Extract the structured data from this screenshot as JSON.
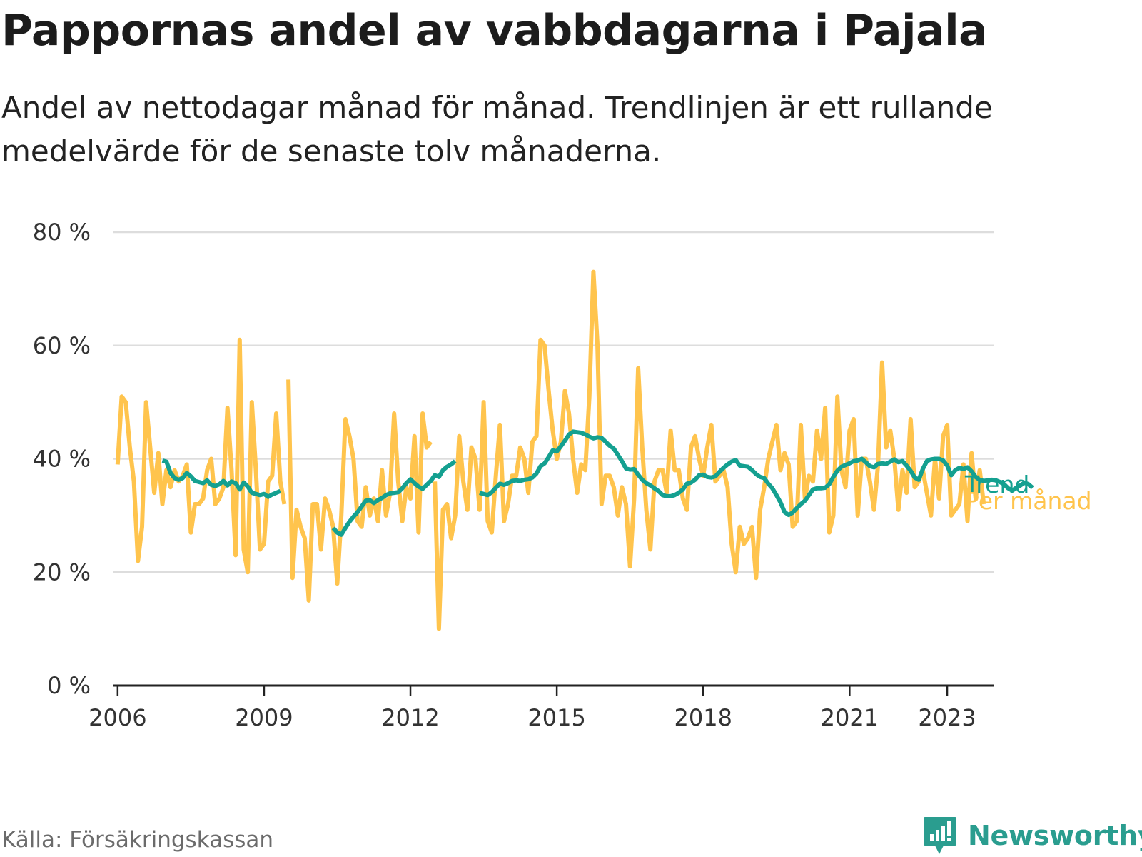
{
  "header": {
    "title": "Pappornas andel av vabbdagarna i Pajala",
    "subtitle": "Andel av nettodagar månad för månad. Trendlinjen är ett rullande medelvärde för de senaste tolv månaderna."
  },
  "footer": {
    "source": "Källa: Försäkringskassan",
    "brand": "Newsworthy"
  },
  "colors": {
    "monthly": "#ffc44d",
    "trend": "#14a090",
    "grid": "#dddddd",
    "axis": "#222222",
    "brand": "#2a9d8f"
  },
  "chart_data": {
    "type": "line",
    "xlim": [
      2005.9,
      2023.95
    ],
    "ylim": [
      0,
      80
    ],
    "yticks": [
      0,
      20,
      40,
      60,
      80
    ],
    "ytick_labels": [
      "0 %",
      "20 %",
      "40 %",
      "60 %",
      "80 %"
    ],
    "xticks": [
      2006,
      2009,
      2012,
      2015,
      2018,
      2021,
      2023
    ],
    "xtick_labels": [
      "2006",
      "2009",
      "2012",
      "2015",
      "2018",
      "2021",
      "2023"
    ],
    "grid": true,
    "series": [
      {
        "name": "Per månad",
        "key": "monthly",
        "segments": [
          {
            "start": 2006.0,
            "values": [
              39,
              51,
              50,
              42,
              36,
              22,
              28,
              50,
              42,
              34,
              41,
              32,
              38,
              35,
              38,
              36,
              37,
              39,
              27,
              32,
              32,
              33,
              38,
              40,
              32,
              33,
              35,
              49,
              38,
              23,
              61,
              24,
              20,
              50,
              38,
              24,
              25,
              36,
              37,
              48,
              36,
              32
            ]
          },
          {
            "start": 2009.5,
            "values": [
              54,
              19,
              31,
              28,
              26,
              15,
              32,
              32,
              24,
              33,
              31,
              28,
              18,
              30,
              47,
              44,
              40,
              29,
              28,
              35,
              30,
              33,
              29,
              38,
              30,
              34,
              48,
              36,
              29,
              35,
              33,
              44,
              27,
              48,
              42,
              43
            ]
          },
          {
            "start": 2012.5,
            "values": [
              36,
              10,
              31,
              32,
              26,
              30,
              44,
              36,
              31,
              42,
              40,
              31,
              50,
              29,
              27,
              37,
              46,
              29,
              32,
              37,
              37,
              42,
              40,
              34,
              43,
              44,
              61,
              60,
              52,
              45,
              40,
              43,
              52,
              48,
              40,
              34,
              39,
              38,
              51,
              73,
              60,
              32,
              37,
              37,
              35,
              30,
              35,
              32,
              21,
              33,
              56,
              42,
              31,
              24,
              36,
              38,
              38,
              34,
              45,
              38,
              38,
              33,
              31,
              42,
              44,
              40,
              37,
              42,
              46,
              36,
              37,
              38,
              35,
              25,
              20,
              28,
              25,
              26,
              28,
              19,
              31,
              35,
              40,
              43,
              46,
              38,
              41,
              39,
              28,
              29,
              46,
              33,
              37,
              36,
              45,
              40,
              49,
              27,
              30,
              51,
              38,
              35,
              45,
              47,
              30,
              40,
              40,
              36,
              31,
              39,
              57,
              42,
              45,
              40,
              31,
              38,
              34,
              47,
              35,
              36,
              38,
              34,
              30,
              40,
              33,
              44,
              46,
              30,
              31,
              32,
              39,
              29,
              41,
              33,
              38,
              32
            ]
          }
        ]
      },
      {
        "name": "Trend",
        "key": "trend",
        "segments": [
          {
            "start": 2006.9167,
            "values": [
              39.7,
              39.5,
              37.5,
              36.6,
              36.3,
              36.6,
              37.5,
              36.9,
              36.1,
              35.9,
              35.7,
              36.2,
              35.4,
              35.2,
              35.5,
              36.1,
              35.3,
              36.0,
              35.7,
              34.6,
              35.8,
              35.1,
              34.0,
              33.8,
              33.6,
              33.8,
              33.3,
              33.7,
              34.0,
              34.3
            ]
          },
          {
            "start": 2010.4167,
            "values": [
              27.8,
              27.0,
              26.6,
              27.8,
              28.9,
              29.8,
              30.6,
              31.6,
              32.6,
              32.7,
              32.2,
              32.7,
              33.1,
              33.6,
              33.9,
              34.0,
              34.1,
              34.8,
              35.7,
              36.4,
              35.7,
              35.1,
              34.7,
              35.4,
              36.1,
              37.1,
              36.8,
              38.0,
              38.6,
              39.0,
              39.6
            ]
          },
          {
            "start": 2013.4167,
            "values": [
              34.0,
              33.8,
              33.6,
              34.1,
              34.9,
              35.6,
              35.4,
              35.7,
              36.1,
              36.2,
              36.1,
              36.3,
              36.4,
              36.7,
              37.4,
              38.7,
              39.2,
              40.3,
              41.5,
              41.3,
              42.2,
              43.2,
              44.3,
              44.8,
              44.7,
              44.6,
              44.3,
              43.9,
              43.6,
              43.8,
              43.7,
              43.0,
              42.3,
              41.8,
              40.7,
              39.6,
              38.3,
              38.1,
              38.2,
              37.2,
              36.3,
              35.7,
              35.3,
              34.8,
              34.3,
              33.6,
              33.4,
              33.4,
              33.6,
              34.0,
              34.6,
              35.6,
              35.8,
              36.3,
              37.1,
              37.2,
              36.8,
              36.7,
              36.9,
              37.7,
              38.4,
              39.0,
              39.5,
              39.8,
              38.8,
              38.7,
              38.6,
              38.0,
              37.3,
              36.8,
              36.6,
              35.6,
              34.8,
              33.6,
              32.3,
              30.6,
              30.1,
              30.5,
              31.3,
              32.0,
              32.6,
              33.6,
              34.6,
              34.8,
              34.8,
              34.9,
              35.5,
              36.8,
              37.9,
              38.6,
              38.9,
              39.2,
              39.6,
              39.7,
              40.0,
              39.4,
              38.7,
              38.5,
              39.1,
              39.2,
              39.1,
              39.5,
              39.9,
              39.4,
              39.6,
              38.8,
              37.9,
              36.7,
              36.3,
              38.2,
              39.6,
              39.9,
              40.0,
              40.0,
              39.7,
              38.8,
              37.1,
              38.0,
              38.4,
              38.2,
              38.5,
              37.8,
              36.8,
              36.3,
              36.1,
              36.2,
              36.3,
              36.2,
              35.9,
              35.5,
              34.8,
              34.4,
              34.9,
              35.3,
              35.8,
              35.5,
              34.9
            ]
          }
        ]
      }
    ]
  }
}
